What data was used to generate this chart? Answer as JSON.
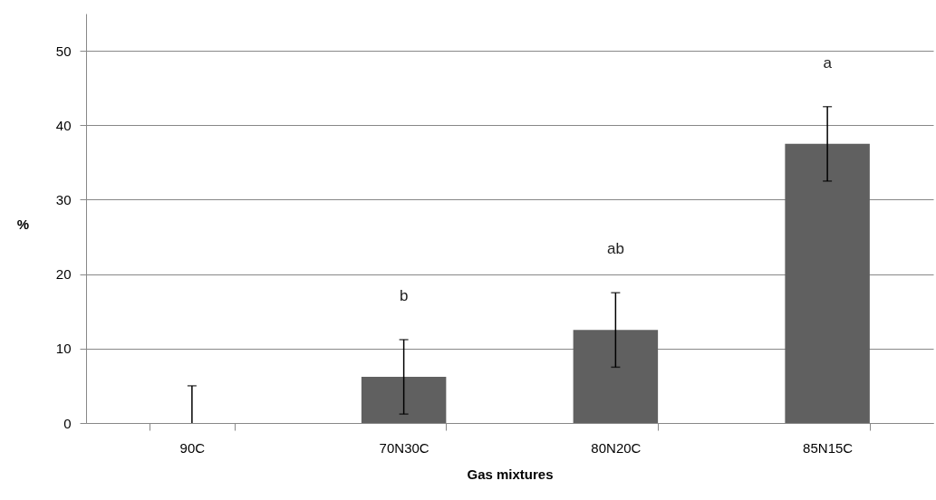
{
  "chart_data": {
    "type": "bar",
    "xlabel": "Gas mixtures",
    "ylabel": "%",
    "categories": [
      "90C",
      "70N30C",
      "80N20C",
      "85N15C"
    ],
    "values": [
      0,
      6.2,
      12.5,
      37.5
    ],
    "color": "#606060",
    "errors": [
      [
        0,
        5
      ],
      [
        1.2,
        11.2
      ],
      [
        7.5,
        17.5
      ],
      [
        32.5,
        42.5
      ]
    ],
    "ylim": [
      0,
      55
    ],
    "yticks": [
      0,
      10,
      20,
      30,
      40,
      50
    ],
    "grid": "y",
    "annotations": [
      "b",
      "ab",
      "a"
    ]
  }
}
